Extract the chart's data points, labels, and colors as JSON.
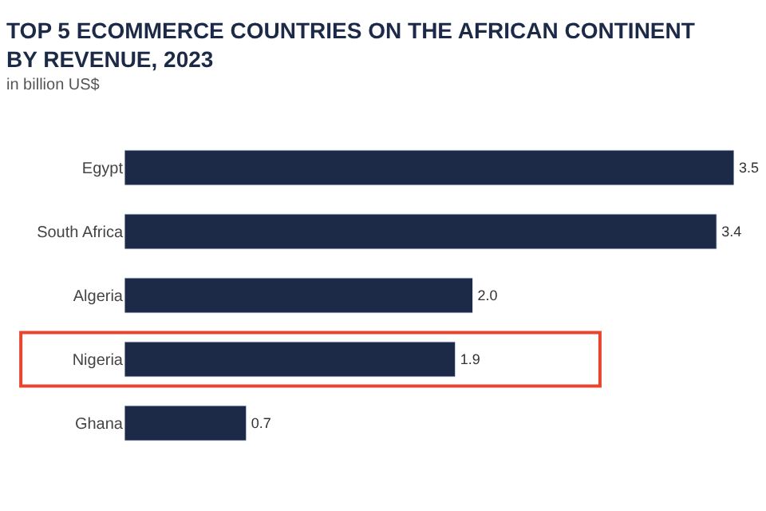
{
  "chart_data": {
    "type": "bar",
    "orientation": "horizontal",
    "title": "TOP 5 ECOMMERCE COUNTRIES ON THE AFRICAN CONTINENT BY REVENUE, 2023",
    "subtitle": "in billion US$",
    "categories": [
      "Egypt",
      "South Africa",
      "Algeria",
      "Nigeria",
      "Ghana"
    ],
    "values": [
      3.5,
      3.4,
      2.0,
      1.9,
      0.7
    ],
    "value_labels": [
      "3.5",
      "3.4",
      "2.0",
      "1.9",
      "0.7"
    ],
    "color": "#1c2a48",
    "legend": false
  }
}
